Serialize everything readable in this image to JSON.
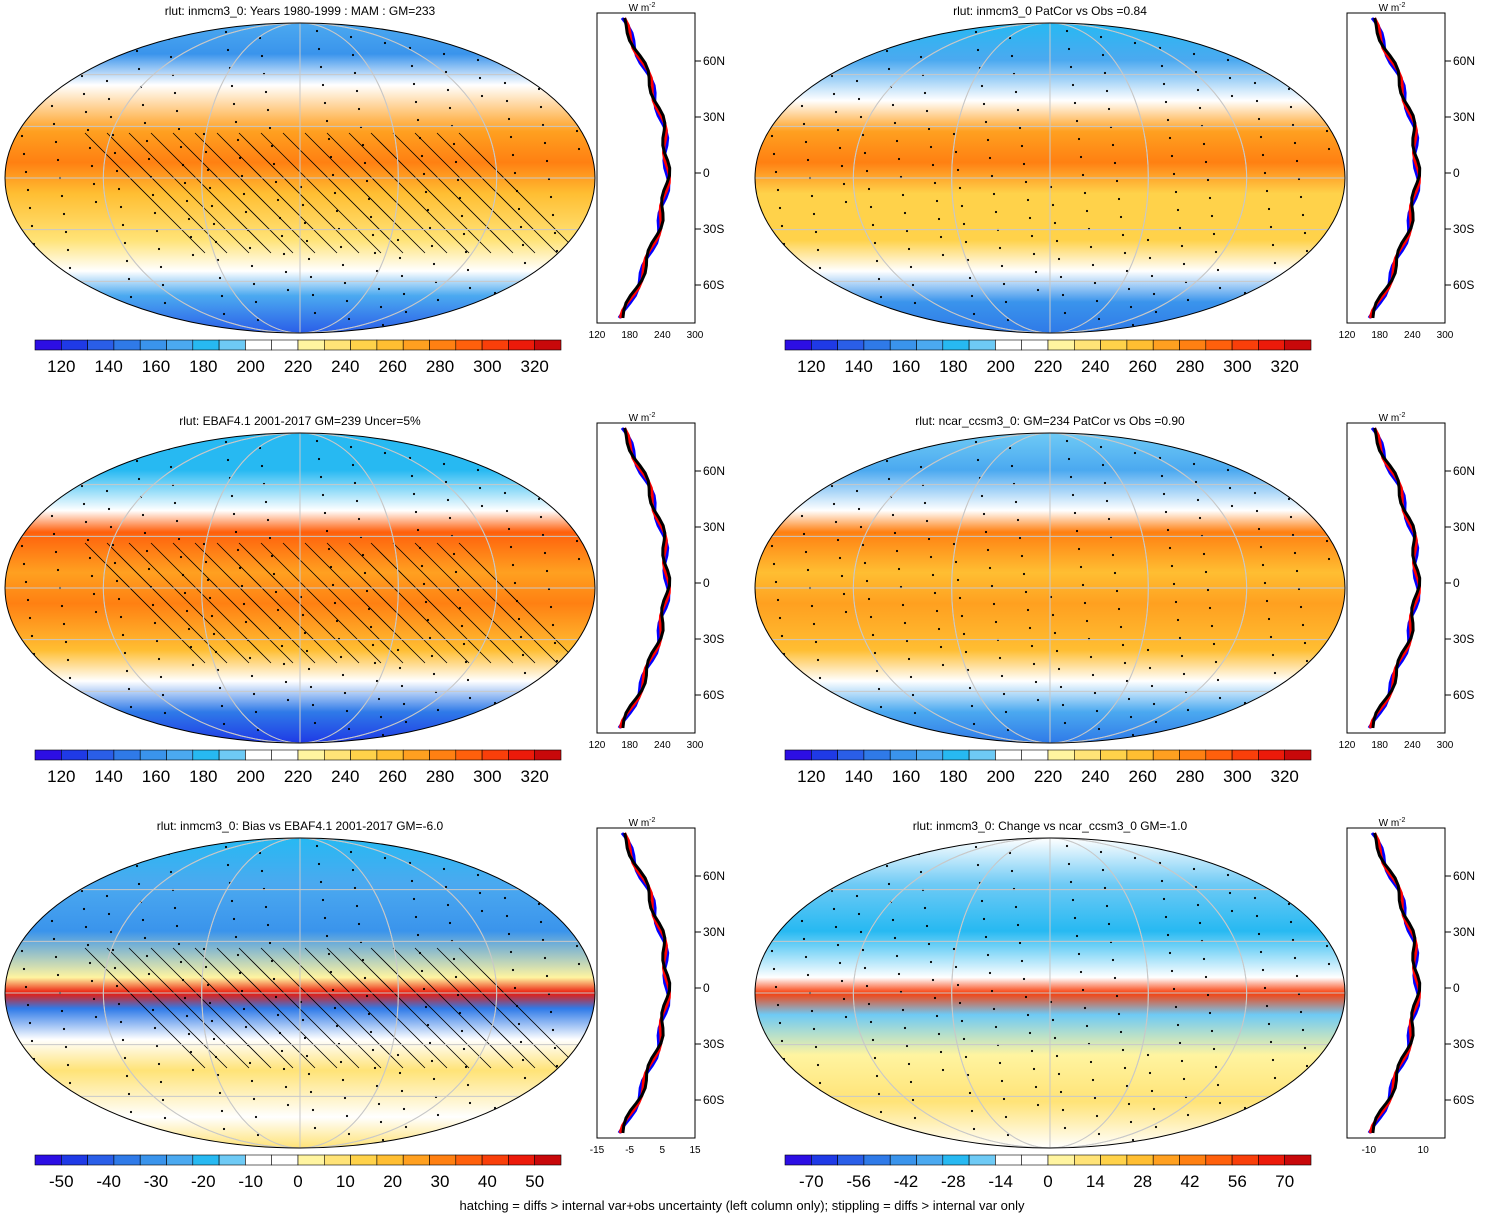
{
  "footer": "hatching = diffs > internal var+obs uncertainty (left column only); stippling = diffs > internal var only",
  "units": "W m",
  "units_exp": "-2",
  "lat_labels": [
    "60N",
    "30N",
    "0",
    "30S",
    "60S"
  ],
  "palettes": {
    "mean": [
      "#2c0ee4",
      "#1f3ae6",
      "#2a5ee8",
      "#2f7ae8",
      "#3a94ec",
      "#4ba9f0",
      "#27b9f2",
      "#6ecaf5",
      "#ffffff",
      "#ffffff",
      "#fff4a0",
      "#ffe377",
      "#ffd24a",
      "#ffbe32",
      "#ffa020",
      "#ff8012",
      "#ff600c",
      "#f93f0a",
      "#ec1a0a",
      "#c8080a"
    ],
    "diff": [
      "#2c0ee4",
      "#1f3ae6",
      "#2a5ee8",
      "#2f7ae8",
      "#3a94ec",
      "#4ba9f0",
      "#27b9f2",
      "#6ecaf5",
      "#ffffff",
      "#ffffff",
      "#fff4a0",
      "#ffe377",
      "#ffd24a",
      "#ffbe32",
      "#ffa020",
      "#ff8012",
      "#ff600c",
      "#f93f0a",
      "#ec1a0a",
      "#c8080a"
    ]
  },
  "chart_data": [
    {
      "type": "heatmap",
      "panel": "map",
      "title": "rlut: inmcm3_0: Years 1980-1999 : MAM : GM=233",
      "colorbar_ticks": [
        "120",
        "140",
        "160",
        "180",
        "200",
        "220",
        "240",
        "260",
        "280",
        "300",
        "320"
      ],
      "palette": "mean",
      "hatching": true,
      "stippling": true,
      "zonal_profile": {
        "x_ticks": [
          "120",
          "180",
          "240",
          "300"
        ],
        "x_range": [
          120,
          300
        ]
      }
    },
    {
      "type": "heatmap",
      "panel": "map",
      "title": "rlut: inmcm3_0 PatCor vs Obs =0.84",
      "colorbar_ticks": [
        "120",
        "140",
        "160",
        "180",
        "200",
        "220",
        "240",
        "260",
        "280",
        "300",
        "320"
      ],
      "palette": "mean",
      "hatching": false,
      "stippling": true,
      "zonal_profile": {
        "x_ticks": [
          "120",
          "180",
          "240",
          "300"
        ],
        "x_range": [
          120,
          300
        ]
      }
    },
    {
      "type": "heatmap",
      "panel": "map",
      "title": "rlut: EBAF4.1 2001-2017 GM=239 Uncer=5%",
      "colorbar_ticks": [
        "120",
        "140",
        "160",
        "180",
        "200",
        "220",
        "240",
        "260",
        "280",
        "300",
        "320"
      ],
      "palette": "mean",
      "hatching": true,
      "stippling": true,
      "zonal_profile": {
        "x_ticks": [
          "120",
          "180",
          "240",
          "300"
        ],
        "x_range": [
          120,
          300
        ]
      }
    },
    {
      "type": "heatmap",
      "panel": "map",
      "title": "rlut: ncar_ccsm3_0: GM=234 PatCor vs Obs =0.90",
      "colorbar_ticks": [
        "120",
        "140",
        "160",
        "180",
        "200",
        "220",
        "240",
        "260",
        "280",
        "300",
        "320"
      ],
      "palette": "mean",
      "hatching": false,
      "stippling": true,
      "zonal_profile": {
        "x_ticks": [
          "120",
          "180",
          "240",
          "300"
        ],
        "x_range": [
          120,
          300
        ]
      }
    },
    {
      "type": "heatmap",
      "panel": "map",
      "title": "rlut: inmcm3_0: Bias vs EBAF4.1 2001-2017 GM=-6.0",
      "colorbar_ticks": [
        "-50",
        "-40",
        "-30",
        "-20",
        "-10",
        "0",
        "10",
        "20",
        "30",
        "40",
        "50"
      ],
      "palette": "diff",
      "hatching": true,
      "stippling": true,
      "zonal_profile": {
        "x_ticks": [
          "-15",
          "-5",
          "5",
          "15"
        ],
        "x_range": [
          -15,
          15
        ]
      }
    },
    {
      "type": "heatmap",
      "panel": "map",
      "title": "rlut: inmcm3_0: Change vs ncar_ccsm3_0 GM=-1.0",
      "colorbar_ticks": [
        "-70",
        "-56",
        "-42",
        "-28",
        "-14",
        "0",
        "14",
        "28",
        "42",
        "56",
        "70"
      ],
      "palette": "diff",
      "hatching": false,
      "stippling": true,
      "zonal_profile": {
        "x_ticks": [
          "-10",
          "10"
        ],
        "x_range": [
          -18,
          18
        ]
      }
    }
  ]
}
